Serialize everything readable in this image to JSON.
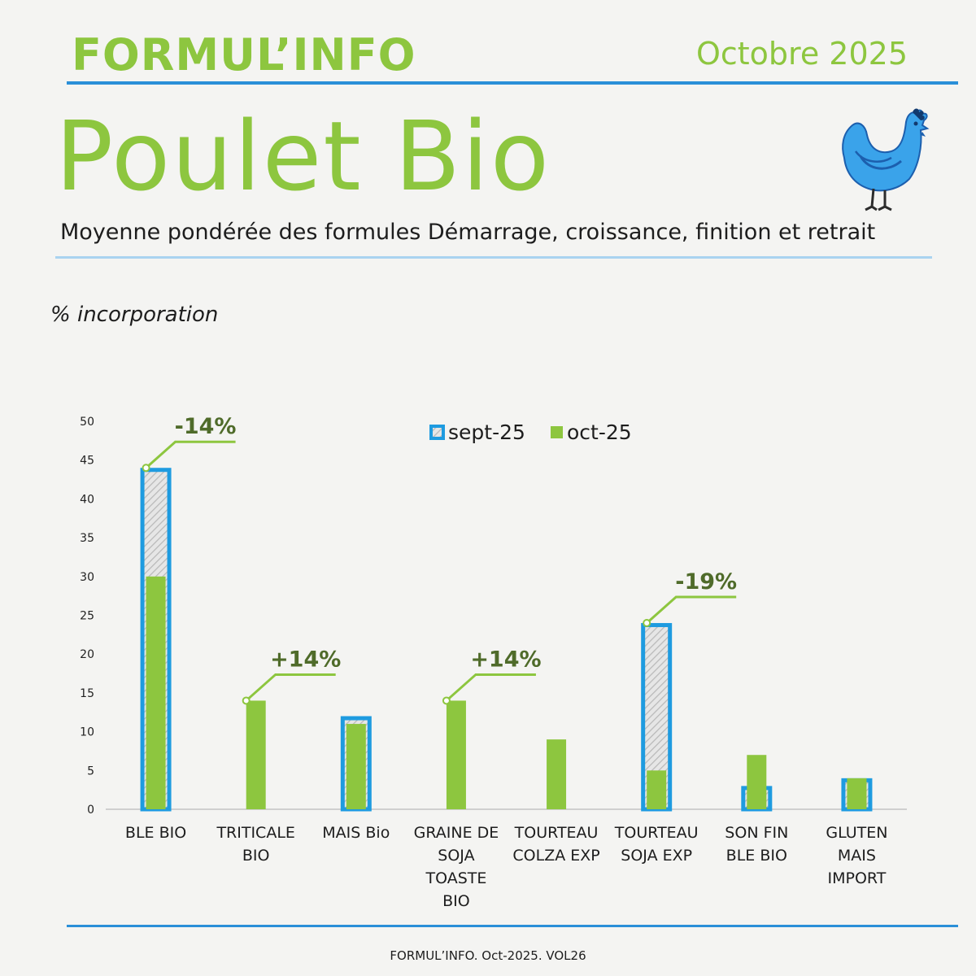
{
  "header": {
    "brand": "FORMUL’INFO",
    "date": "Octobre 2025",
    "title": "Poulet Bio",
    "subtitle": "Moyenne pondérée des formules Démarrage, croissance, finition et retrait",
    "unit_label": "% incorporation"
  },
  "footer": {
    "text": "FORMUL’INFO. Oct-2025. VOL26"
  },
  "icons": {
    "mascot": "hen-icon"
  },
  "colors": {
    "sept": "#1e9be0",
    "oct": "#8dc63f",
    "annotation": "#4f6b2a",
    "axis": "#cfcfcf"
  },
  "chart_data": {
    "type": "bar",
    "categories": [
      [
        "BLE BIO"
      ],
      [
        "TRITICALE",
        "BIO"
      ],
      [
        "MAIS Bio"
      ],
      [
        "GRAINE DE",
        "SOJA",
        "TOASTE",
        "BIO"
      ],
      [
        "TOURTEAU",
        "COLZA EXP"
      ],
      [
        "TOURTEAU",
        "SOJA EXP"
      ],
      [
        "SON FIN",
        "BLE BIO"
      ],
      [
        "GLUTEN",
        "MAIS",
        "IMPORT"
      ]
    ],
    "series": [
      {
        "name": "sept-25",
        "values": [
          44,
          0,
          12,
          0,
          0,
          24,
          3,
          4
        ]
      },
      {
        "name": "oct-25",
        "values": [
          30,
          14,
          11,
          14,
          9,
          5,
          7,
          4
        ]
      }
    ],
    "ylim": [
      0,
      50
    ],
    "yticks": [
      0,
      5,
      10,
      15,
      20,
      25,
      30,
      35,
      40,
      45,
      50
    ],
    "legend": "top-center",
    "annotations": [
      {
        "category_index": 0,
        "label": "-14%"
      },
      {
        "category_index": 1,
        "label": "+14%"
      },
      {
        "category_index": 3,
        "label": "+14%"
      },
      {
        "category_index": 5,
        "label": "-19%"
      }
    ]
  }
}
